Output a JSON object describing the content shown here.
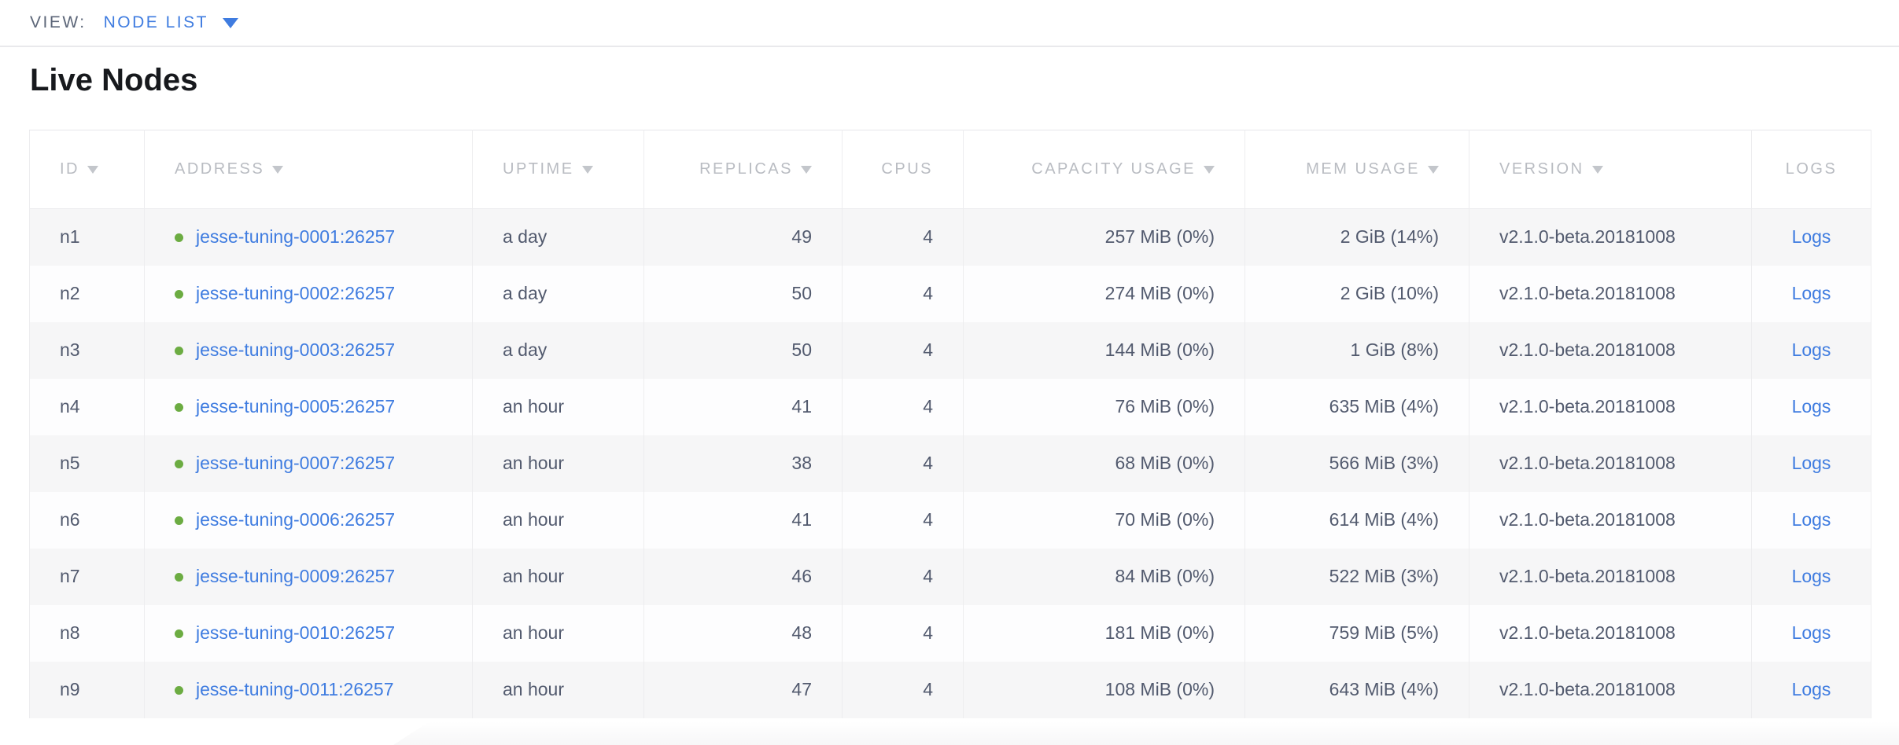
{
  "view_bar": {
    "label": "VIEW:",
    "selected": "NODE LIST"
  },
  "page": {
    "title": "Live Nodes"
  },
  "colors": {
    "accent_blue": "#3f7ce0",
    "link_blue": "#3f7ce0",
    "status_green": "#6cac42",
    "header_gray": "#b9bcc2",
    "row_alt_gray": "#f6f6f7"
  },
  "table": {
    "columns": [
      {
        "key": "id",
        "label": "ID",
        "sortable": true,
        "align": "left"
      },
      {
        "key": "address",
        "label": "ADDRESS",
        "sortable": true,
        "align": "left"
      },
      {
        "key": "uptime",
        "label": "UPTIME",
        "sortable": true,
        "align": "left"
      },
      {
        "key": "replicas",
        "label": "REPLICAS",
        "sortable": true,
        "align": "right"
      },
      {
        "key": "cpus",
        "label": "CPUS",
        "sortable": false,
        "align": "right"
      },
      {
        "key": "capacity",
        "label": "CAPACITY USAGE",
        "sortable": true,
        "align": "right"
      },
      {
        "key": "mem",
        "label": "MEM USAGE",
        "sortable": true,
        "align": "right"
      },
      {
        "key": "version",
        "label": "VERSION",
        "sortable": true,
        "align": "left"
      },
      {
        "key": "logs",
        "label": "LOGS",
        "sortable": false,
        "align": "center"
      }
    ],
    "rows": [
      {
        "id": "n1",
        "address": "jesse-tuning-0001:26257",
        "status": "live",
        "uptime": "a day",
        "replicas": "49",
        "cpus": "4",
        "capacity": "257 MiB (0%)",
        "mem": "2 GiB (14%)",
        "version": "v2.1.0-beta.20181008",
        "logs": "Logs"
      },
      {
        "id": "n2",
        "address": "jesse-tuning-0002:26257",
        "status": "live",
        "uptime": "a day",
        "replicas": "50",
        "cpus": "4",
        "capacity": "274 MiB (0%)",
        "mem": "2 GiB (10%)",
        "version": "v2.1.0-beta.20181008",
        "logs": "Logs"
      },
      {
        "id": "n3",
        "address": "jesse-tuning-0003:26257",
        "status": "live",
        "uptime": "a day",
        "replicas": "50",
        "cpus": "4",
        "capacity": "144 MiB (0%)",
        "mem": "1 GiB (8%)",
        "version": "v2.1.0-beta.20181008",
        "logs": "Logs"
      },
      {
        "id": "n4",
        "address": "jesse-tuning-0005:26257",
        "status": "live",
        "uptime": "an hour",
        "replicas": "41",
        "cpus": "4",
        "capacity": "76 MiB (0%)",
        "mem": "635 MiB (4%)",
        "version": "v2.1.0-beta.20181008",
        "logs": "Logs"
      },
      {
        "id": "n5",
        "address": "jesse-tuning-0007:26257",
        "status": "live",
        "uptime": "an hour",
        "replicas": "38",
        "cpus": "4",
        "capacity": "68 MiB (0%)",
        "mem": "566 MiB (3%)",
        "version": "v2.1.0-beta.20181008",
        "logs": "Logs"
      },
      {
        "id": "n6",
        "address": "jesse-tuning-0006:26257",
        "status": "live",
        "uptime": "an hour",
        "replicas": "41",
        "cpus": "4",
        "capacity": "70 MiB (0%)",
        "mem": "614 MiB (4%)",
        "version": "v2.1.0-beta.20181008",
        "logs": "Logs"
      },
      {
        "id": "n7",
        "address": "jesse-tuning-0009:26257",
        "status": "live",
        "uptime": "an hour",
        "replicas": "46",
        "cpus": "4",
        "capacity": "84 MiB (0%)",
        "mem": "522 MiB (3%)",
        "version": "v2.1.0-beta.20181008",
        "logs": "Logs"
      },
      {
        "id": "n8",
        "address": "jesse-tuning-0010:26257",
        "status": "live",
        "uptime": "an hour",
        "replicas": "48",
        "cpus": "4",
        "capacity": "181 MiB (0%)",
        "mem": "759 MiB (5%)",
        "version": "v2.1.0-beta.20181008",
        "logs": "Logs"
      },
      {
        "id": "n9",
        "address": "jesse-tuning-0011:26257",
        "status": "live",
        "uptime": "an hour",
        "replicas": "47",
        "cpus": "4",
        "capacity": "108 MiB (0%)",
        "mem": "643 MiB (4%)",
        "version": "v2.1.0-beta.20181008",
        "logs": "Logs"
      }
    ]
  }
}
